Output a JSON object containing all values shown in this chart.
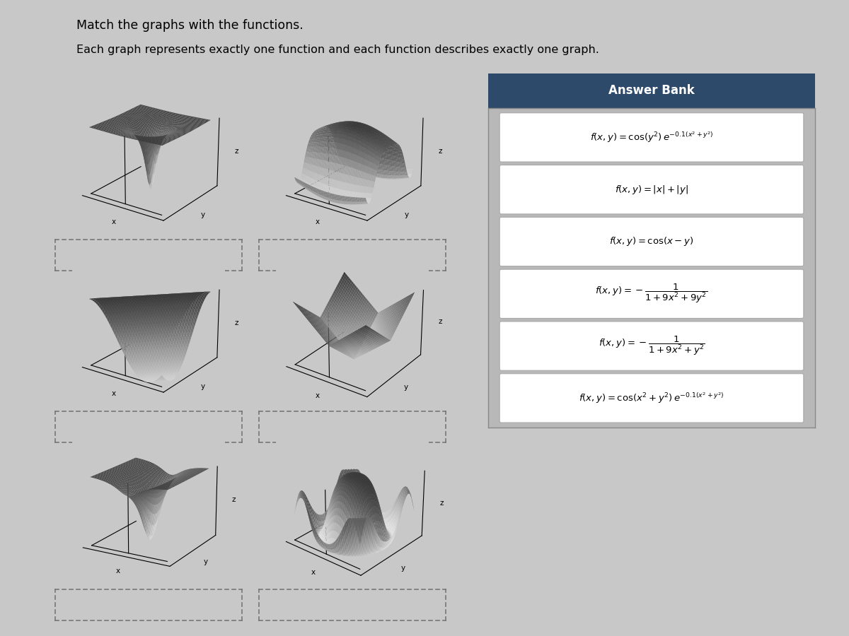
{
  "title1": "Match the graphs with the functions.",
  "title2": "Each graph represents exactly one function and each function describes exactly one graph.",
  "background_color": "#c8c8c8",
  "answer_bank_title": "Answer Bank",
  "answer_bank_bg": "#2d4a6b",
  "formulas_latex": [
    "$f(x, y) = \\cos(y^2)\\, e^{-0.1(x^2+y^2)}$",
    "$f(x, y) = |x| + |y|$",
    "$f(x, y) = \\cos(x - y)$",
    "$f(x, y) = -\\dfrac{1}{1+9x^2+9y^2}$",
    "$f(x, y) = -\\dfrac{1}{1+9x^2+y^2}$",
    "$f(x, y) = \\cos(x^2 + y^2)\\, e^{-0.1(x^2+y^2)}$"
  ],
  "graph_elevations": [
    22,
    22,
    22,
    28,
    18,
    28
  ],
  "graph_azimuths": [
    -55,
    -55,
    -55,
    -55,
    -60,
    -50
  ],
  "N": 45
}
